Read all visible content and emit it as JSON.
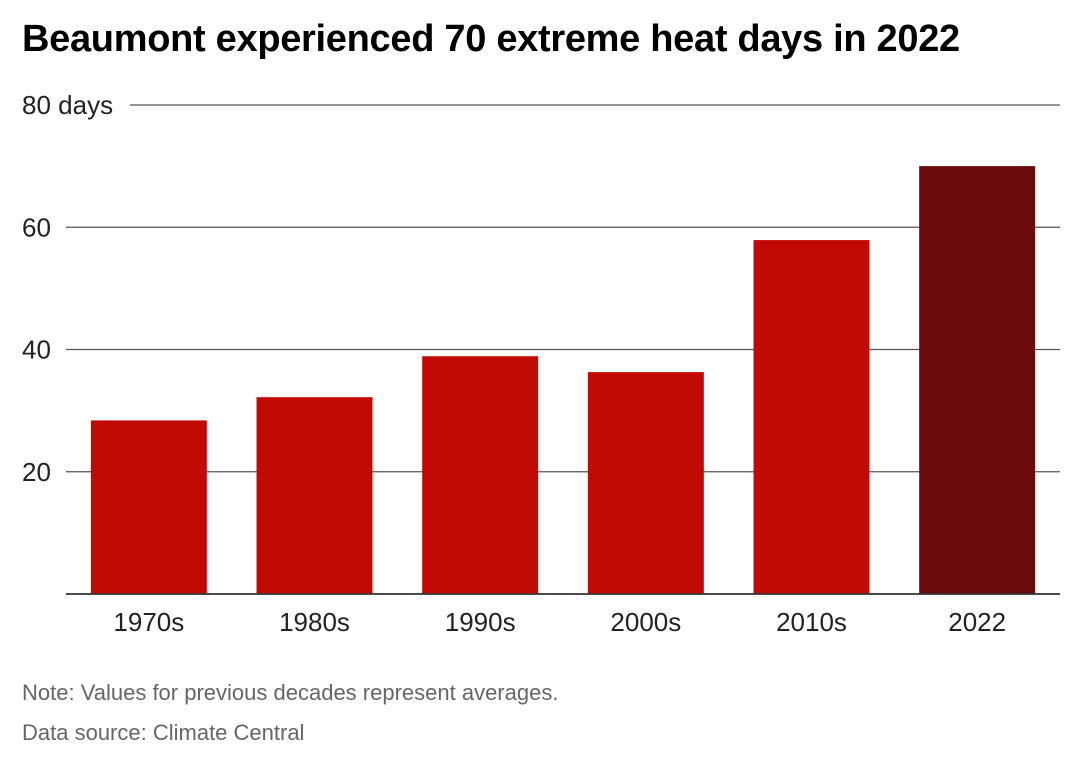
{
  "chart_data": {
    "type": "bar",
    "title": "Beaumont experienced 70 extreme heat days in 2022",
    "xlabel": "",
    "ylabel": "",
    "y_unit_label": "days",
    "categories": [
      "1970s",
      "1980s",
      "1990s",
      "2000s",
      "2010s",
      "2022"
    ],
    "values": [
      28.4,
      32.2,
      38.9,
      36.3,
      57.9,
      70
    ],
    "ylim": [
      0,
      80
    ],
    "yticks": [
      20,
      40,
      60,
      80
    ],
    "grid": true,
    "colors": {
      "bar": "#c20a04",
      "highlight": "#6b0a0a",
      "grid": "#555555",
      "axis": "#333333"
    },
    "highlight_index": 5
  },
  "footer": {
    "note": "Note: Values for previous decades represent averages.",
    "source": "Data source: Climate Central"
  }
}
